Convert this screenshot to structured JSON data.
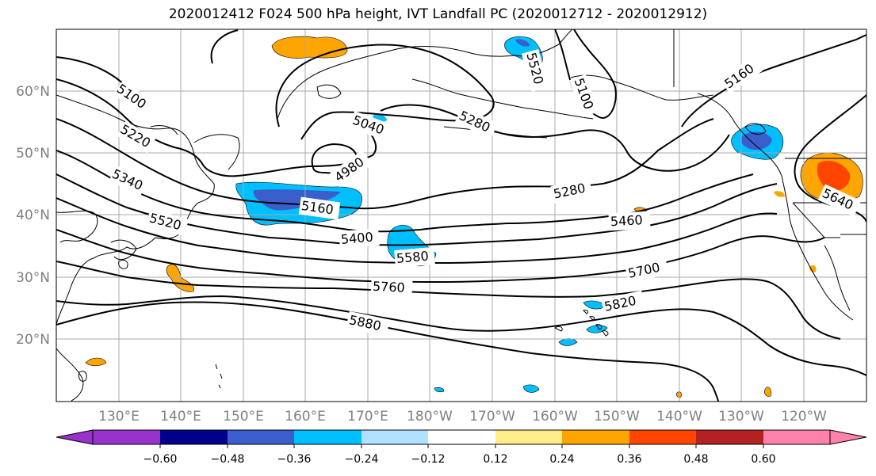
{
  "title": "2020012412 F024 500 hPa height, IVT Landfall PC (2020012712 - 2020012912)",
  "lat_labels": [
    "60°N",
    "50°N",
    "40°N",
    "30°N",
    "20°N"
  ],
  "lon_labels": [
    "130°E",
    "140°E",
    "150°E",
    "160°E",
    "170°E",
    "180°W",
    "170°W",
    "160°W",
    "150°W",
    "140°W",
    "130°W",
    "120°W"
  ],
  "contour_labels": [
    "5100",
    "5220",
    "5340",
    "5520",
    "4980",
    "5040",
    "5160",
    "5400",
    "5580",
    "5760",
    "5880",
    "5280",
    "5460",
    "5700",
    "5820",
    "5160",
    "5640",
    "5100",
    "5520"
  ],
  "colorbar": {
    "ticks": [
      "−0.60",
      "−0.48",
      "−0.36",
      "−0.24",
      "−0.12",
      "0.12",
      "0.24",
      "0.36",
      "0.48",
      "0.60"
    ],
    "colors": [
      "#9932cc",
      "#00008b",
      "#3a5fcd",
      "#00bfff",
      "#b0e2ff",
      "#ffffff",
      "#ffec8b",
      "#ffa500",
      "#ff4500",
      "#b22222",
      "#ff82ab"
    ]
  },
  "colors": {
    "frame": "#000000",
    "grid": "#a9a9a9",
    "axis_text": "#808080"
  }
}
